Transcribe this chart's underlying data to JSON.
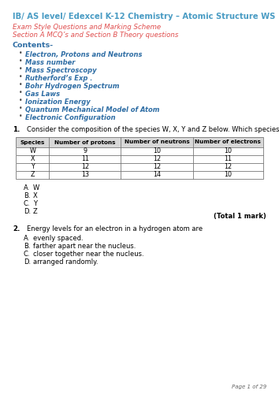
{
  "title": "IB/ AS level/ Edexcel K-12 Chemistry – Atomic Structure WS",
  "title_color": "#4a9cc4",
  "subtitle1": "Exam Style Questions and Marking Scheme",
  "subtitle2": "Section A MCQ’s and Section B Theory questions",
  "subtitle_color": "#e05050",
  "contents_label": "Contents-",
  "contents_color": "#2e6da4",
  "bullet_items": [
    "Electron, Protons and Neutrons",
    "Mass number",
    "Mass Spectroscopy",
    "Rutherford’s Exp .",
    "Bohr Hydrogen Spectrum",
    "Gas Laws",
    "Ionization Energy",
    "Quantum Mechanical Model of Atom",
    "Electronic Configuration"
  ],
  "bullet_color": "#2e6da4",
  "q1_num": "1.",
  "q1_body": "Consider the composition of the species W, X, Y and Z below. Which species is an anion?",
  "table_headers": [
    "Species",
    "Number of protons",
    "Number of neutrons",
    "Number of electrons"
  ],
  "table_data": [
    [
      "W",
      "9",
      "10",
      "10"
    ],
    [
      "X",
      "11",
      "12",
      "11"
    ],
    [
      "Y",
      "12",
      "12",
      "12"
    ],
    [
      "Z",
      "13",
      "14",
      "10"
    ]
  ],
  "q1_options": [
    [
      "A.",
      "W"
    ],
    [
      "B.",
      "X"
    ],
    [
      "C.",
      "Y"
    ],
    [
      "D.",
      "Z"
    ]
  ],
  "total_mark": "(Total 1 mark)",
  "q2_num": "2.",
  "q2_body": "Energy levels for an electron in a hydrogen atom are",
  "q2_options": [
    [
      "A.",
      "evenly spaced."
    ],
    [
      "B.",
      "farther apart near the nucleus."
    ],
    [
      "C.",
      "closer together near the nucleus."
    ],
    [
      "D.",
      "arranged randomly."
    ]
  ],
  "page_footer": "Page 1 of 29",
  "bg_color": "#ffffff",
  "text_color": "#000000"
}
